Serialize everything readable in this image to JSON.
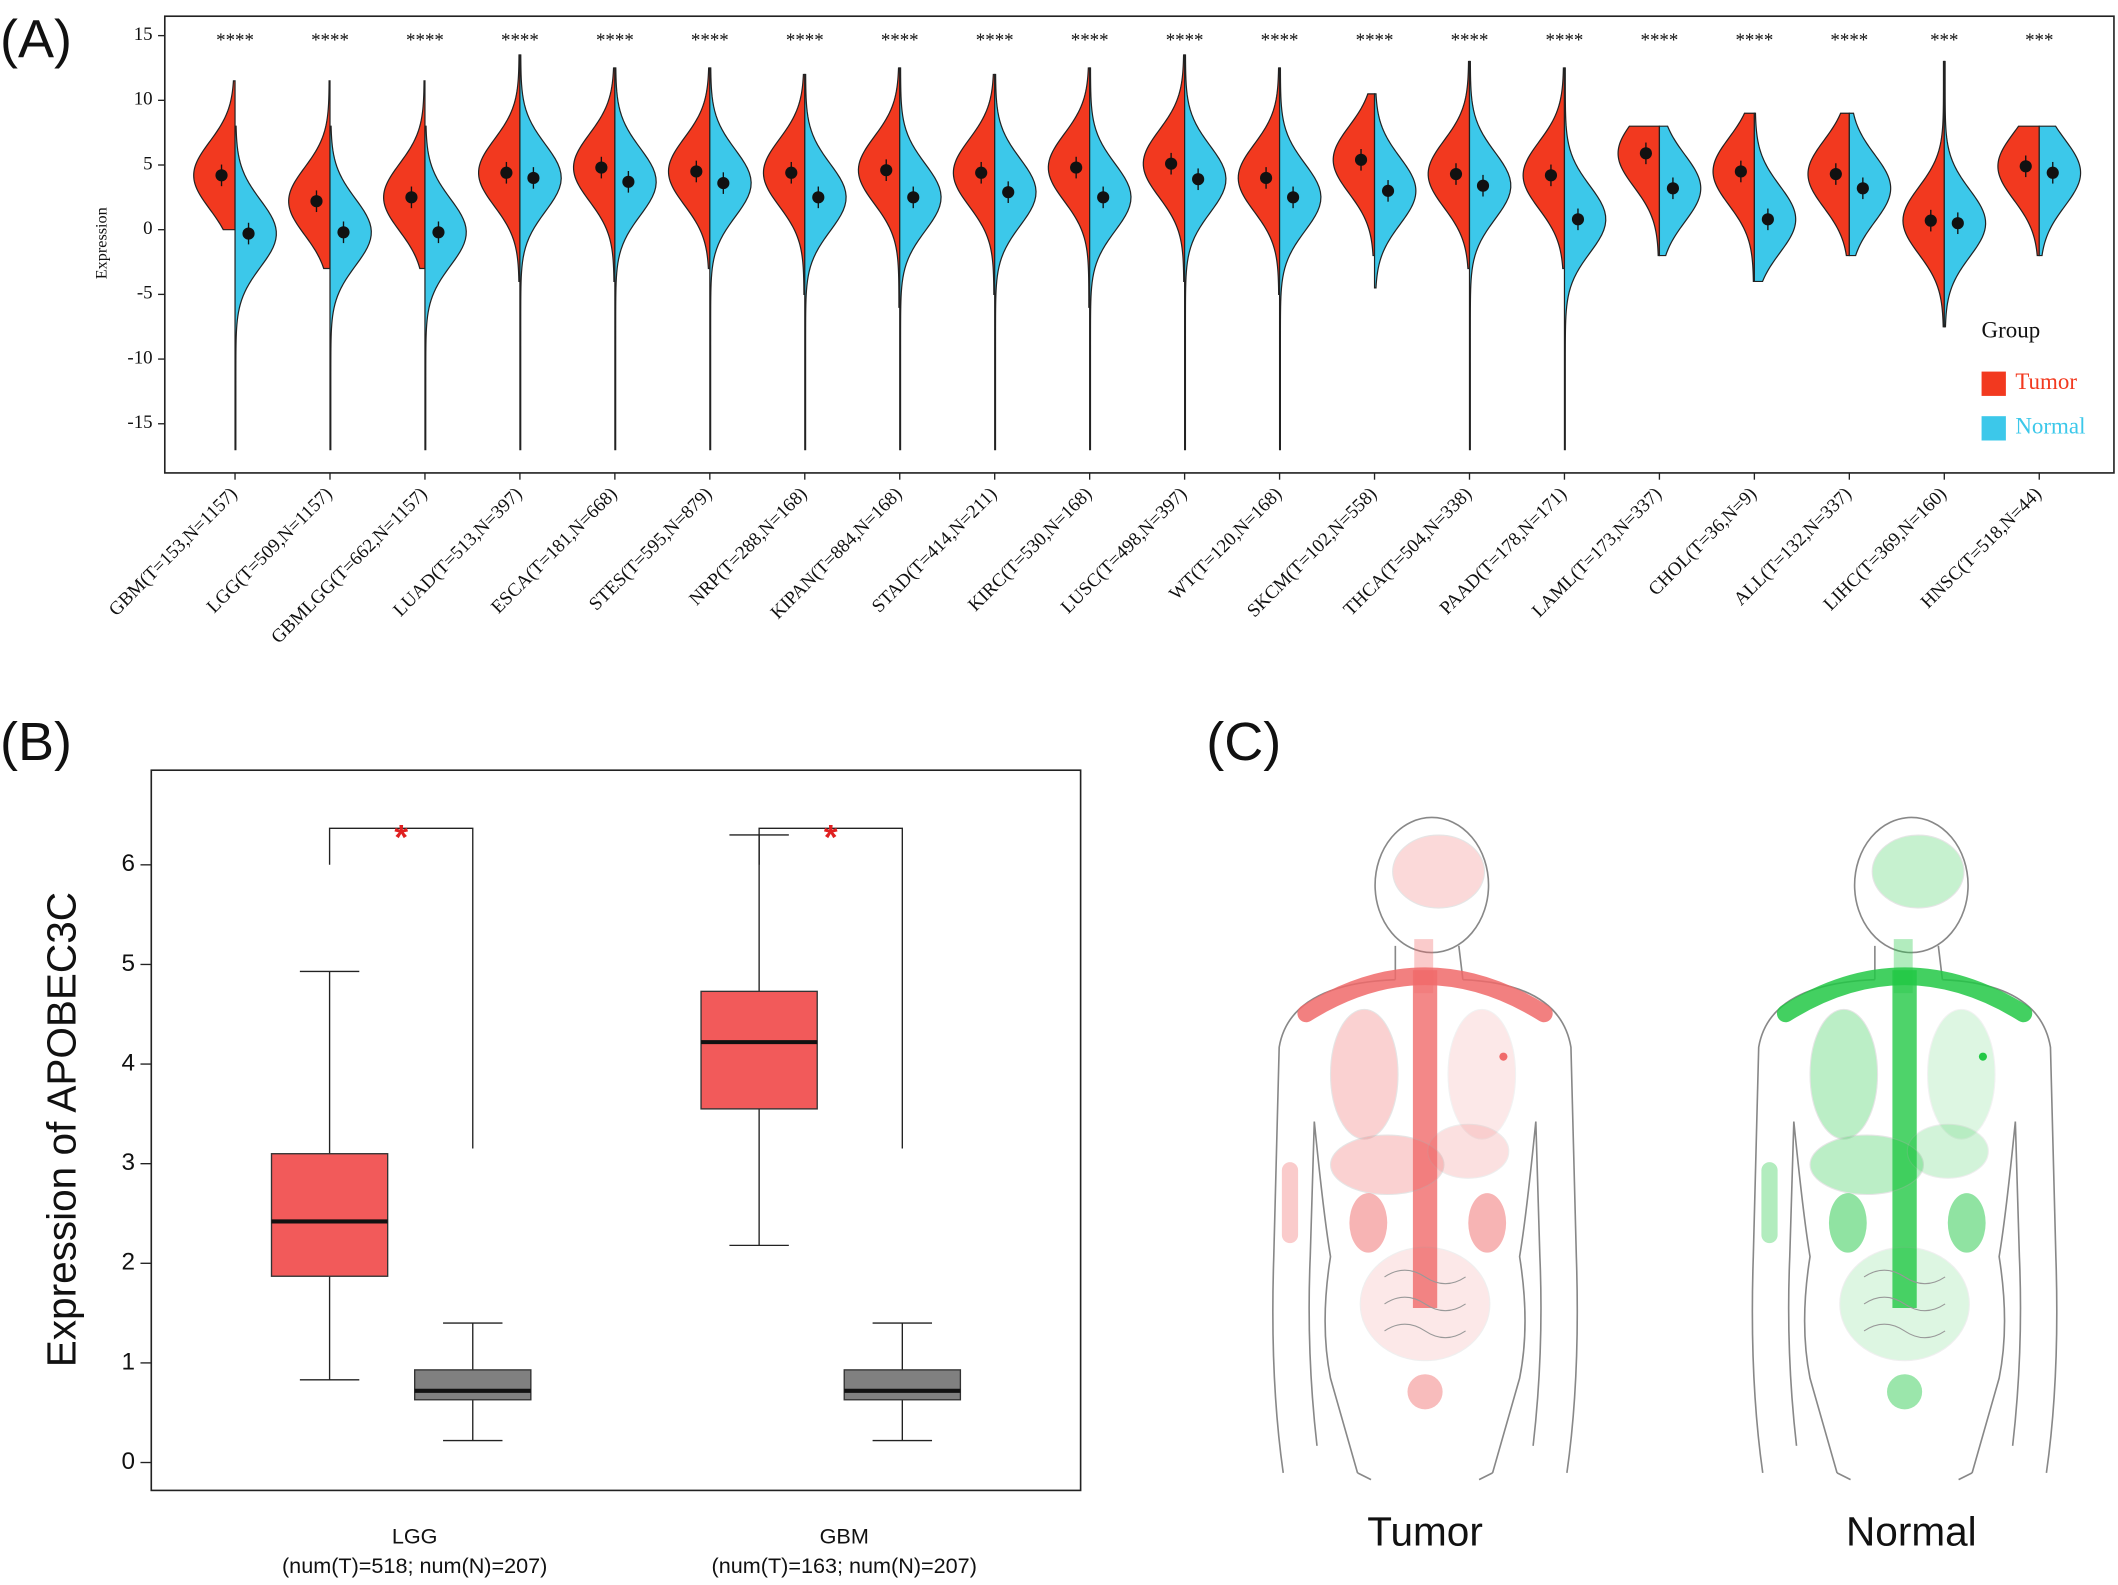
{
  "chart_data": [
    {
      "type": "split-violin",
      "panel": "(A)",
      "ylabel": "Expression",
      "categories": [
        "GBM(T=153,N=1157)",
        "LGG(T=509,N=1157)",
        "GBMLGG(T=662,N=1157)",
        "LUAD(T=513,N=397)",
        "ESCA(T=181,N=668)",
        "STES(T=595,N=879)",
        "NRP(T=288,N=168)",
        "KIPAN(T=884,N=168)",
        "STAD(T=414,N=211)",
        "KIRC(T=530,N=168)",
        "LUSC(T=498,N=397)",
        "WT(T=120,N=168)",
        "SKCM(T=102,N=558)",
        "THCA(T=504,N=338)",
        "PAAD(T=178,N=171)",
        "LAML(T=173,N=337)",
        "CHOL(T=36,N=9)",
        "ALL(T=132,N=337)",
        "LIHC(T=369,N=160)",
        "HNSC(T=518,N=44)"
      ],
      "significance": [
        "****",
        "****",
        "****",
        "****",
        "****",
        "****",
        "****",
        "****",
        "****",
        "****",
        "****",
        "****",
        "****",
        "****",
        "****",
        "****",
        "****",
        "****",
        "***",
        "***"
      ],
      "legend_title": "Group",
      "legend_position": "right",
      "ylim": [
        -18.8,
        16.5
      ],
      "yticks": [
        -15,
        -10,
        -5,
        0,
        5,
        10,
        15
      ],
      "series": [
        {
          "name": "Tumor",
          "color": "#f2391f",
          "values": [
            4.2,
            2.2,
            2.5,
            4.4,
            4.8,
            4.5,
            4.4,
            4.6,
            4.4,
            4.8,
            5.1,
            4.0,
            5.4,
            4.3,
            4.2,
            5.9,
            4.5,
            4.3,
            0.7,
            4.9
          ],
          "lower": [
            0,
            -3,
            -3,
            -4,
            -4,
            -3,
            -5,
            -6,
            -5,
            -6,
            -4,
            -5,
            -2,
            -3,
            -3,
            -2,
            -4,
            -2,
            -7.5,
            -2
          ],
          "upper": [
            11.5,
            11.5,
            11.5,
            13.5,
            12.5,
            12.5,
            12,
            12.5,
            12,
            12.5,
            13.5,
            12.5,
            10.5,
            13,
            12.5,
            8,
            9,
            9,
            13,
            8
          ]
        },
        {
          "name": "Normal",
          "color": "#3cc8ea",
          "values": [
            -0.3,
            -0.2,
            -0.2,
            4.0,
            3.7,
            3.6,
            2.5,
            2.5,
            2.9,
            2.5,
            3.9,
            2.5,
            3.0,
            3.4,
            0.8,
            3.2,
            0.8,
            3.2,
            0.5,
            4.4
          ],
          "lower": [
            -17,
            -17,
            -17,
            -17,
            -17,
            -17,
            -17,
            -17,
            -17,
            -17,
            -17,
            -17,
            -4.5,
            -17,
            -17,
            -2,
            -4,
            -2,
            -7.5,
            -2
          ],
          "upper": [
            8,
            8,
            8,
            13.5,
            12.5,
            12.5,
            12,
            12.5,
            12,
            12.5,
            13.5,
            12.5,
            10.5,
            13,
            12.5,
            8,
            9,
            9,
            13,
            8
          ]
        }
      ]
    },
    {
      "type": "box",
      "panel": "(B)",
      "ylabel": "Expression of APOBEC3C",
      "categories": [
        "LGG",
        "GBM"
      ],
      "category_notes": [
        "(num(T)=518; num(N)=207)",
        "(num(T)=163; num(N)=207)"
      ],
      "significance": [
        "*",
        "*"
      ],
      "significance_color": "#e02020",
      "ylim": [
        -0.28,
        6.95
      ],
      "yticks": [
        0,
        1,
        2,
        3,
        4,
        5,
        6
      ],
      "series": [
        {
          "color": "#f25a5a",
          "whisker_low": [
            0.83,
            2.18
          ],
          "q1": [
            1.87,
            3.55
          ],
          "median": [
            2.42,
            4.22
          ],
          "q3": [
            3.1,
            4.73
          ],
          "whisker_high": [
            4.93,
            6.3
          ]
        },
        {
          "color": "#808080",
          "whisker_low": [
            0.22,
            0.22
          ],
          "q1": [
            0.63,
            0.63
          ],
          "median": [
            0.72,
            0.72
          ],
          "q3": [
            0.93,
            0.93
          ],
          "whisker_high": [
            1.4,
            1.4
          ]
        }
      ]
    }
  ],
  "body_map": {
    "panel": "(C)",
    "titles": [
      "Tumor",
      "Normal"
    ]
  }
}
